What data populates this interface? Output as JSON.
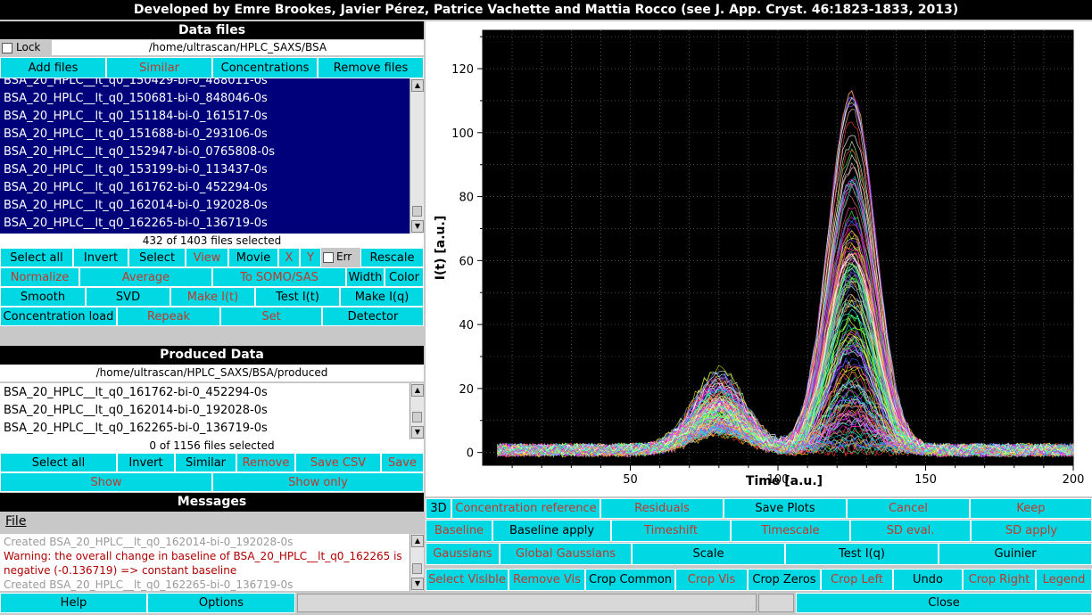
{
  "window": {
    "title": "Developed by Emre Brookes, Javier Pérez, Patrice Vachette and Mattia Rocco (see J. App. Cryst. 46:1823-1833, 2013)"
  },
  "data_files": {
    "header": "Data files",
    "lock_label": "Lock",
    "path": "/home/ultrascan/HPLC_SAXS/BSA",
    "buttons": [
      "Add files",
      "Similar",
      "Concentrations",
      "Remove files"
    ],
    "items": [
      "BSA_20_HPLC__lt_q0_150429-bi-0_488011-0s",
      "BSA_20_HPLC__lt_q0_150681-bi-0_848046-0s",
      "BSA_20_HPLC__lt_q0_151184-bi-0_161517-0s",
      "BSA_20_HPLC__lt_q0_151688-bi-0_293106-0s",
      "BSA_20_HPLC__lt_q0_152947-bi-0_0765808-0s",
      "BSA_20_HPLC__lt_q0_153199-bi-0_113437-0s",
      "BSA_20_HPLC__lt_q0_161762-bi-0_452294-0s",
      "BSA_20_HPLC__lt_q0_162014-bi-0_192028-0s",
      "BSA_20_HPLC__lt_q0_162265-bi-0_136719-0s"
    ],
    "selection_status": "432 of 1403 files selected",
    "row1": {
      "select_all": "Select all",
      "invert": "Invert",
      "select": "Select",
      "view": "View",
      "movie": "Movie",
      "x": "X",
      "y": "Y",
      "err": "Err",
      "rescale": "Rescale"
    },
    "row2": {
      "normalize": "Normalize",
      "average": "Average",
      "to_somo": "To SOMO/SAS",
      "width": "Width",
      "color": "Color"
    },
    "row3": {
      "smooth": "Smooth",
      "svd": "SVD",
      "make_it": "Make I(t)",
      "test_it": "Test I(t)",
      "make_iq": "Make I(q)"
    },
    "row4": {
      "conc_load": "Concentration load",
      "repeak": "Repeak",
      "set": "Set",
      "detector": "Detector"
    }
  },
  "produced_data": {
    "header": "Produced Data",
    "path": "/home/ultrascan/HPLC_SAXS/BSA/produced",
    "items": [
      "BSA_20_HPLC__lt_q0_161762-bi-0_452294-0s",
      "BSA_20_HPLC__lt_q0_162014-bi-0_192028-0s",
      "BSA_20_HPLC__lt_q0_162265-bi-0_136719-0s"
    ],
    "selection_status": "0 of 1156 files selected",
    "row1": {
      "select_all": "Select all",
      "invert": "Invert",
      "similar": "Similar",
      "remove": "Remove",
      "save_csv": "Save CSV",
      "save": "Save"
    },
    "row2": {
      "show": "Show",
      "show_only": "Show only"
    }
  },
  "messages": {
    "header": "Messages",
    "menu_file": "File",
    "lines": [
      "Created BSA_20_HPLC__lt_q0_162014-bi-0_192028-0s",
      "Warning: the overall change in baseline of BSA_20_HPLC__lt_q0_162265 is",
      "negative (-0.136719) => constant baseline",
      "Created BSA_20_HPLC__lt_q0_162265-bi-0_136719-0s"
    ]
  },
  "bottom": {
    "help": "Help",
    "options": "Options",
    "close": "Close"
  },
  "plot_buttons": {
    "row1": {
      "3d": "3D",
      "conc_ref": "Concentration reference",
      "residuals": "Residuals",
      "save_plots": "Save Plots",
      "cancel": "Cancel",
      "keep": "Keep"
    },
    "row2": {
      "baseline": "Baseline",
      "baseline_apply": "Baseline apply",
      "timeshift": "Timeshift",
      "timescale": "Timescale",
      "sd_eval": "SD eval.",
      "sd_apply": "SD apply"
    },
    "row3": {
      "gaussians": "Gaussians",
      "global_gaussians": "Global Gaussians",
      "scale": "Scale",
      "test_iq": "Test I(q)",
      "guinier": "Guinier"
    },
    "row4": {
      "select_visible": "Select Visible",
      "remove_vis": "Remove Vis",
      "crop_common": "Crop Common",
      "crop_vis": "Crop Vis",
      "crop_zeros": "Crop Zeros",
      "crop_left": "Crop Left",
      "undo": "Undo",
      "crop_right": "Crop Right",
      "legend": "Legend"
    }
  },
  "colors": {
    "cyan": "#00d8e4",
    "list_selected": "#00007a",
    "plot_bg": "#000000"
  },
  "chart_data": {
    "type": "line",
    "xlabel": "Time [a.u.]",
    "ylabel": "I(t) [a.u.]",
    "xlim": [
      0,
      200
    ],
    "ylim": [
      -4,
      132
    ],
    "xticks": [
      50,
      100,
      150,
      200
    ],
    "yticks": [
      0,
      20,
      40,
      60,
      80,
      100,
      120
    ],
    "grid": true,
    "series_count_shown": 432,
    "peaks": [
      {
        "center": 80,
        "width": 9,
        "max_height": 25
      },
      {
        "center": 125,
        "width": 8,
        "max_height": 120
      }
    ]
  }
}
